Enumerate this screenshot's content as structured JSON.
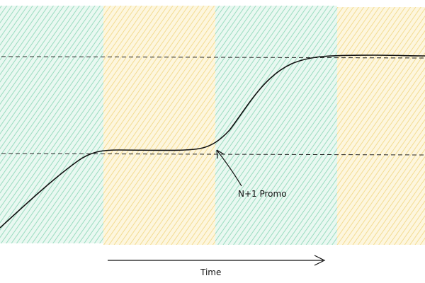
{
  "annotation": {
    "text": "N+1 Promo"
  },
  "time_axis": {
    "label": "Time"
  },
  "colors": {
    "band_green": "#bfe9d6",
    "band_yellow": "#f7e7b2",
    "ink": "#111111"
  }
}
